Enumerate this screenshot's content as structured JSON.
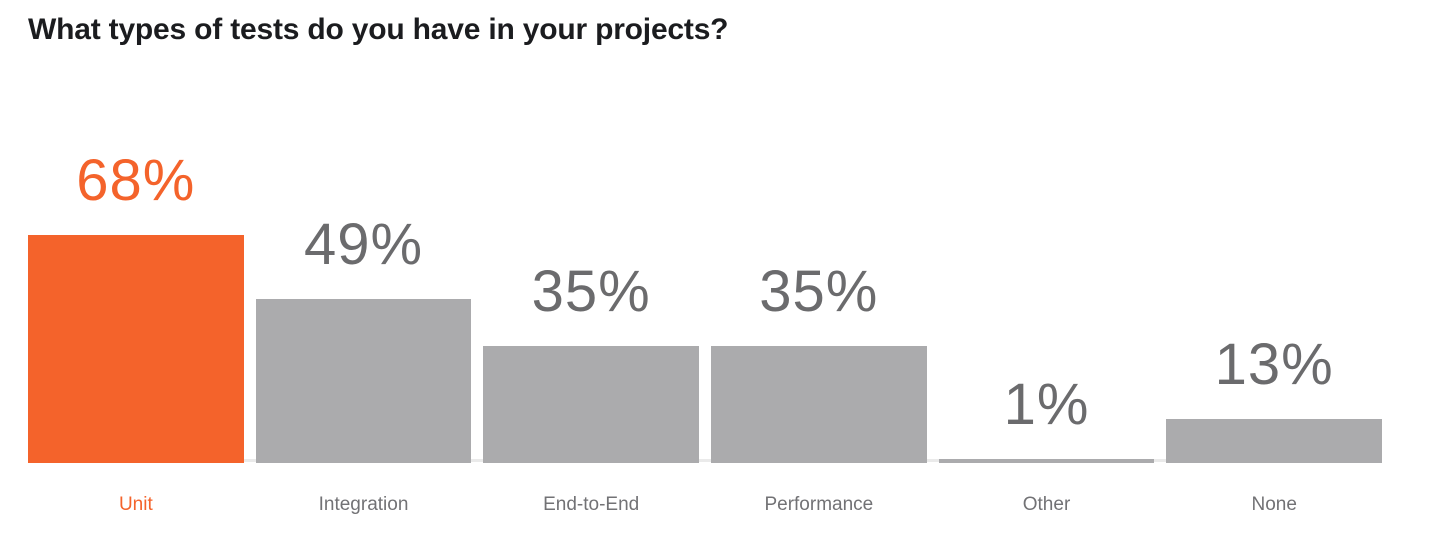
{
  "title": "What types of tests do you have in your projects?",
  "colors": {
    "accent": "#F4632B",
    "bar_gray": "#ABABAD",
    "value_gray": "#6B6B6D",
    "label_gray": "#727275",
    "title_color": "#1B1C1F",
    "axis_line": "#EAEAEA",
    "background": "#FFFFFF"
  },
  "chart_data": {
    "type": "bar",
    "title": "What types of tests do you have in your projects?",
    "categories": [
      "Unit",
      "Integration",
      "End-to-End",
      "Performance",
      "Other",
      "None"
    ],
    "values": [
      68,
      49,
      35,
      35,
      1,
      13
    ],
    "value_labels": [
      "68%",
      "49%",
      "35%",
      "35%",
      "1%",
      "13%"
    ],
    "unit": "%",
    "highlighted_index": 0,
    "highlighted_category": "Unit",
    "ylim": [
      0,
      100
    ],
    "grid": false,
    "legend": false,
    "orientation": "vertical",
    "value_label_position": "above-bar",
    "category_label_position": "below-axis"
  }
}
